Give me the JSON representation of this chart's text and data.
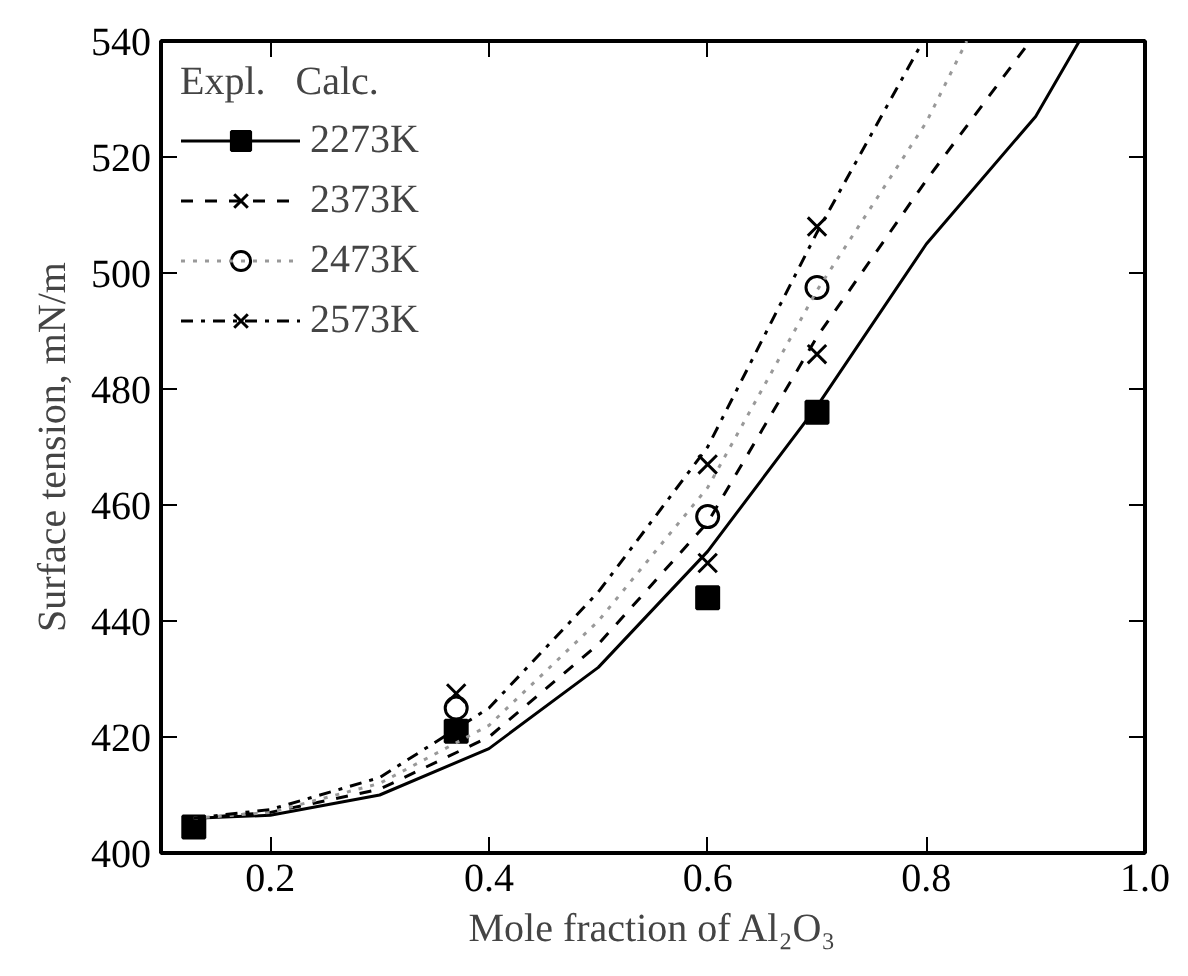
{
  "chart_data": {
    "type": "scatter",
    "xlabel": "Mole fraction of Al₂O₃",
    "ylabel": "Surface tension, mN/m",
    "legend_title": "Expl.   Calc.",
    "legend": "top left",
    "xlim": [
      0.1,
      1.0
    ],
    "ylim": [
      400,
      540
    ],
    "xticks": [
      0.2,
      0.4,
      0.6,
      0.8,
      {
        "value": 1.0,
        "label": "1.0"
      }
    ],
    "yticks": [
      400,
      420,
      440,
      460,
      480,
      500,
      520,
      540
    ],
    "grid": false,
    "series": [
      {
        "name": "2273K",
        "marker": "square",
        "color": "#000000",
        "x": [
          0.13,
          0.37,
          0.6,
          0.7
        ],
        "values": [
          404.5,
          421,
          444,
          476
        ]
      },
      {
        "type": "line",
        "line_style": "solid",
        "color": "#000000",
        "x": [
          0.13,
          0.2,
          0.3,
          0.4,
          0.5,
          0.6,
          0.7,
          0.8,
          0.9,
          0.94
        ],
        "values": [
          406,
          406.5,
          410,
          418,
          432,
          452,
          477,
          505,
          527,
          540
        ]
      },
      {
        "name": "2373K",
        "marker": "cross",
        "color": "#000000",
        "x": [
          0.6,
          0.7
        ],
        "values": [
          450,
          486
        ]
      },
      {
        "type": "line",
        "line_style": "dashed",
        "color": "#000000",
        "x": [
          0.13,
          0.2,
          0.3,
          0.4,
          0.5,
          0.6,
          0.7,
          0.8,
          0.895
        ],
        "values": [
          406,
          407,
          411,
          420,
          436,
          457,
          489,
          516,
          540
        ]
      },
      {
        "name": "2473K",
        "marker": "circle",
        "color": "#000000",
        "x": [
          0.37,
          0.6,
          0.7
        ],
        "values": [
          425,
          458,
          497.5
        ]
      },
      {
        "type": "line",
        "line_style": "dotted",
        "color": "#999999",
        "x": [
          0.13,
          0.2,
          0.3,
          0.4,
          0.5,
          0.6,
          0.7,
          0.8,
          0.837
        ],
        "values": [
          406,
          407,
          412,
          422,
          440,
          463,
          497,
          526,
          540
        ]
      },
      {
        "name": "2573K",
        "marker": "cross",
        "color": "#000000",
        "x": [
          0.37,
          0.6,
          0.7
        ],
        "values": [
          427.5,
          467,
          508
        ]
      },
      {
        "type": "line",
        "line_style": "dashdot",
        "color": "#000000",
        "x": [
          0.13,
          0.2,
          0.3,
          0.4,
          0.5,
          0.6,
          0.7,
          0.797
        ],
        "values": [
          406,
          407.5,
          413,
          425,
          445,
          470,
          507,
          540
        ]
      }
    ]
  }
}
